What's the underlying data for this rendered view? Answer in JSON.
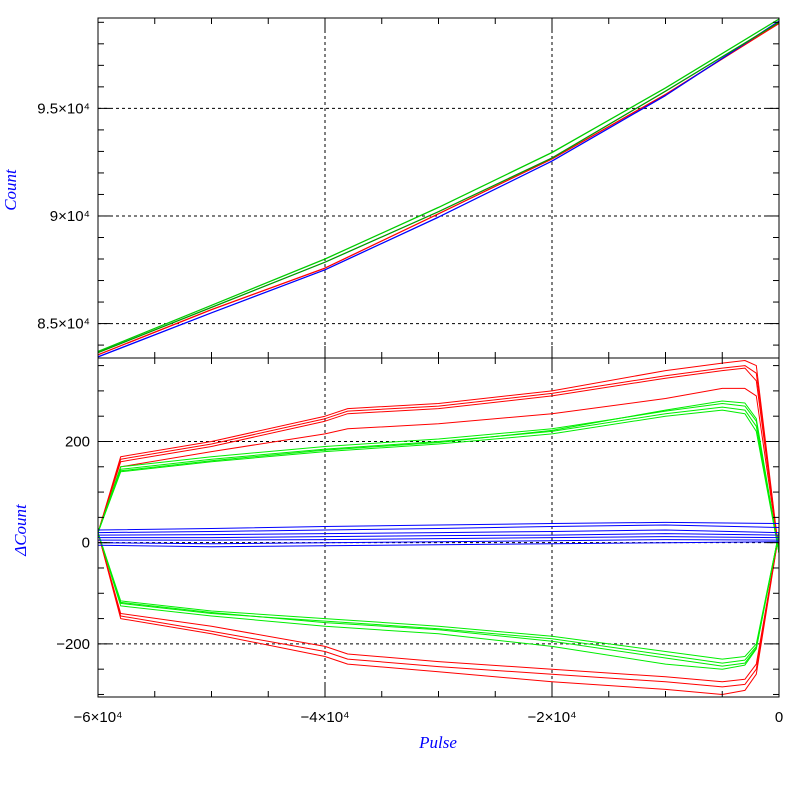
{
  "chart_data": [
    {
      "type": "line",
      "name": "top-panel",
      "title": "",
      "xlabel": "",
      "ylabel": "Count",
      "xlim": [
        -60000,
        0
      ],
      "ylim": [
        83400,
        99200
      ],
      "grid": true,
      "yticks": [
        {
          "value": 95000,
          "label": "9.5×10⁴"
        },
        {
          "value": 90000,
          "label": "9×10⁴"
        },
        {
          "value": 85000,
          "label": "8.5×10⁴"
        }
      ],
      "xticks": [
        -60000,
        -40000,
        -20000,
        0
      ],
      "series": [
        {
          "color": "#ff0000",
          "x": [
            -60000,
            -50000,
            -40000,
            -30000,
            -20000,
            -10000,
            0
          ],
          "y": [
            83550,
            85650,
            87580,
            90100,
            92650,
            95650,
            98950
          ]
        },
        {
          "color": "#0000ff",
          "x": [
            -60000,
            -50000,
            -40000,
            -30000,
            -20000,
            -10000,
            0
          ],
          "y": [
            83450,
            85500,
            87500,
            89950,
            92550,
            95600,
            99050
          ]
        },
        {
          "color": "#00cc00",
          "x": [
            -60000,
            -50000,
            -40000,
            -30000,
            -20000,
            -10000,
            0
          ],
          "y": [
            83700,
            85850,
            88000,
            90400,
            92950,
            95950,
            99150
          ]
        },
        {
          "color": "#009900",
          "x": [
            -60000,
            -50000,
            -40000,
            -30000,
            -20000,
            -10000,
            0
          ],
          "y": [
            83650,
            85750,
            87850,
            90200,
            92700,
            95800,
            99000
          ]
        }
      ]
    },
    {
      "type": "line",
      "name": "bottom-panel",
      "title": "",
      "xlabel": "Pulse",
      "ylabel": "ΔCount",
      "xlim": [
        -60000,
        0
      ],
      "ylim": [
        -305,
        365
      ],
      "grid": true,
      "yticks": [
        {
          "value": 200,
          "label": "200"
        },
        {
          "value": 0,
          "label": "0"
        },
        {
          "value": -200,
          "label": "−200"
        }
      ],
      "xticks": [
        {
          "value": -60000,
          "label": "−6×10⁴"
        },
        {
          "value": -40000,
          "label": "−4×10⁴"
        },
        {
          "value": -20000,
          "label": "−2×10⁴"
        },
        {
          "value": 0,
          "label": "0"
        }
      ],
      "series": [
        {
          "color": "#ff0000",
          "group": "red-upper",
          "x": [
            -60000,
            -58000,
            -50000,
            -40000,
            -38000,
            -30000,
            -20000,
            -10000,
            -5000,
            -3000,
            -2000,
            0
          ],
          "y": [
            20,
            170,
            200,
            250,
            265,
            275,
            300,
            340,
            355,
            360,
            350,
            -20
          ]
        },
        {
          "color": "#ff0000",
          "group": "red-upper",
          "x": [
            -60000,
            -58000,
            -50000,
            -40000,
            -38000,
            -30000,
            -20000,
            -10000,
            -5000,
            -3000,
            -2000,
            0
          ],
          "y": [
            20,
            165,
            195,
            245,
            260,
            270,
            295,
            330,
            345,
            350,
            335,
            -20
          ]
        },
        {
          "color": "#ff0000",
          "group": "red-upper",
          "x": [
            -60000,
            -58000,
            -50000,
            -40000,
            -38000,
            -30000,
            -20000,
            -10000,
            -5000,
            -3000,
            -2000,
            0
          ],
          "y": [
            20,
            160,
            190,
            240,
            255,
            265,
            290,
            325,
            340,
            345,
            320,
            -20
          ]
        },
        {
          "color": "#ff0000",
          "group": "red-upper",
          "x": [
            -60000,
            -58000,
            -50000,
            -40000,
            -38000,
            -30000,
            -20000,
            -10000,
            -5000,
            -3000,
            -2000,
            0
          ],
          "y": [
            20,
            150,
            180,
            215,
            225,
            235,
            255,
            285,
            305,
            305,
            290,
            -20
          ]
        },
        {
          "color": "#ff0000",
          "group": "red-lower",
          "x": [
            -60000,
            -58000,
            -50000,
            -40000,
            -38000,
            -30000,
            -20000,
            -10000,
            -5000,
            -3000,
            -2000,
            0
          ],
          "y": [
            20,
            -140,
            -165,
            -205,
            -220,
            -235,
            -250,
            -265,
            -275,
            -270,
            -240,
            20
          ]
        },
        {
          "color": "#ff0000",
          "group": "red-lower",
          "x": [
            -60000,
            -58000,
            -50000,
            -40000,
            -38000,
            -30000,
            -20000,
            -10000,
            -5000,
            -3000,
            -2000,
            0
          ],
          "y": [
            20,
            -145,
            -175,
            -215,
            -230,
            -245,
            -260,
            -275,
            -285,
            -280,
            -250,
            20
          ]
        },
        {
          "color": "#ff0000",
          "group": "red-lower",
          "x": [
            -60000,
            -58000,
            -50000,
            -40000,
            -38000,
            -30000,
            -20000,
            -10000,
            -5000,
            -3000,
            -2000,
            0
          ],
          "y": [
            20,
            -150,
            -180,
            -225,
            -240,
            -255,
            -275,
            -290,
            -300,
            -292,
            -260,
            20
          ]
        },
        {
          "color": "#00ee00",
          "group": "green-upper",
          "x": [
            -60000,
            -58000,
            -50000,
            -40000,
            -30000,
            -20000,
            -10000,
            -5000,
            -3000,
            -2000,
            0
          ],
          "y": [
            20,
            150,
            170,
            190,
            205,
            225,
            260,
            275,
            270,
            240,
            -20
          ]
        },
        {
          "color": "#00ee00",
          "group": "green-upper",
          "x": [
            -60000,
            -58000,
            -50000,
            -40000,
            -30000,
            -20000,
            -10000,
            -5000,
            -3000,
            -2000,
            0
          ],
          "y": [
            20,
            145,
            165,
            185,
            200,
            220,
            255,
            268,
            262,
            230,
            -20
          ]
        },
        {
          "color": "#00ee00",
          "group": "green-upper",
          "x": [
            -60000,
            -58000,
            -50000,
            -40000,
            -30000,
            -20000,
            -10000,
            -5000,
            -3000,
            -2000,
            0
          ],
          "y": [
            20,
            140,
            160,
            180,
            195,
            215,
            250,
            262,
            255,
            220,
            -20
          ]
        },
        {
          "color": "#00ee00",
          "group": "green-upper",
          "x": [
            -60000,
            -58000,
            -50000,
            -40000,
            -30000,
            -20000,
            -10000,
            -5000,
            -3000,
            -2000,
            0
          ],
          "y": [
            20,
            142,
            162,
            183,
            198,
            222,
            262,
            280,
            276,
            245,
            -20
          ]
        },
        {
          "color": "#00ee00",
          "group": "green-lower",
          "x": [
            -60000,
            -58000,
            -50000,
            -40000,
            -30000,
            -20000,
            -10000,
            -5000,
            -3000,
            -2000,
            0
          ],
          "y": [
            20,
            -115,
            -135,
            -150,
            -165,
            -185,
            -215,
            -230,
            -225,
            -200,
            20
          ]
        },
        {
          "color": "#00ee00",
          "group": "green-lower",
          "x": [
            -60000,
            -58000,
            -50000,
            -40000,
            -30000,
            -20000,
            -10000,
            -5000,
            -3000,
            -2000,
            0
          ],
          "y": [
            20,
            -120,
            -140,
            -155,
            -170,
            -190,
            -222,
            -238,
            -232,
            -205,
            20
          ]
        },
        {
          "color": "#00ee00",
          "group": "green-lower",
          "x": [
            -60000,
            -58000,
            -50000,
            -40000,
            -30000,
            -20000,
            -10000,
            -5000,
            -3000,
            -2000,
            0
          ],
          "y": [
            20,
            -125,
            -145,
            -165,
            -180,
            -205,
            -240,
            -250,
            -242,
            -210,
            20
          ]
        },
        {
          "color": "#00ee00",
          "group": "green-lower",
          "x": [
            -60000,
            -58000,
            -50000,
            -40000,
            -30000,
            -20000,
            -10000,
            -5000,
            -3000,
            -2000,
            0
          ],
          "y": [
            20,
            -118,
            -138,
            -158,
            -172,
            -195,
            -228,
            -244,
            -238,
            -208,
            20
          ]
        },
        {
          "color": "#0000ff",
          "group": "blue",
          "x": [
            -60000,
            -50000,
            -40000,
            -30000,
            -20000,
            -10000,
            0
          ],
          "y": [
            25,
            28,
            32,
            35,
            38,
            40,
            38
          ]
        },
        {
          "color": "#0000ff",
          "group": "blue",
          "x": [
            -60000,
            -50000,
            -40000,
            -30000,
            -20000,
            -10000,
            0
          ],
          "y": [
            20,
            22,
            25,
            28,
            32,
            35,
            30
          ]
        },
        {
          "color": "#0000ff",
          "group": "blue",
          "x": [
            -60000,
            -50000,
            -40000,
            -30000,
            -20000,
            -10000,
            0
          ],
          "y": [
            15,
            16,
            18,
            20,
            22,
            25,
            20
          ]
        },
        {
          "color": "#0000ff",
          "group": "blue",
          "x": [
            -60000,
            -50000,
            -40000,
            -30000,
            -20000,
            -10000,
            0
          ],
          "y": [
            10,
            10,
            12,
            14,
            15,
            18,
            15
          ]
        },
        {
          "color": "#0000ff",
          "group": "blue",
          "x": [
            -60000,
            -50000,
            -40000,
            -30000,
            -20000,
            -10000,
            0
          ],
          "y": [
            5,
            5,
            6,
            8,
            10,
            12,
            10
          ]
        },
        {
          "color": "#0000ff",
          "group": "blue",
          "x": [
            -60000,
            -50000,
            -40000,
            -30000,
            -20000,
            -10000,
            0
          ],
          "y": [
            0,
            -2,
            0,
            2,
            4,
            6,
            5
          ]
        },
        {
          "color": "#0000ff",
          "group": "blue",
          "x": [
            -60000,
            -50000,
            -40000,
            -30000,
            -20000,
            -10000,
            0
          ],
          "y": [
            -5,
            -8,
            -6,
            -4,
            -2,
            0,
            2
          ]
        }
      ]
    }
  ]
}
